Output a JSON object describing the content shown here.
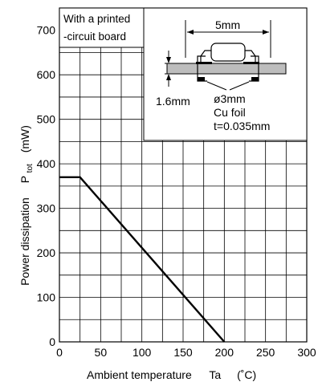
{
  "chart_data": {
    "type": "line",
    "title": "",
    "xlabel": "Ambient temperature",
    "xsymbol": "Ta",
    "xunit": "(˚C)",
    "ylabel": "Power dissipation",
    "ysymbol_main": "P",
    "ysymbol_sub": "tot",
    "yunit": "(mW)",
    "xlim": [
      0,
      300
    ],
    "ylim": [
      0,
      750
    ],
    "xticks": [
      0,
      50,
      100,
      150,
      200,
      250,
      300
    ],
    "yticks": [
      0,
      100,
      200,
      300,
      400,
      500,
      600,
      700
    ],
    "grid": true,
    "series": [
      {
        "x": [
          0,
          25,
          200
        ],
        "y": [
          370,
          370,
          0
        ]
      }
    ],
    "annotations": {
      "condition_line1": "With a printed",
      "condition_line2": "-circuit board",
      "pad_width": "5mm",
      "board_thickness": "1.6mm",
      "pad_diameter": "ø3mm",
      "foil_material": "Cu foil",
      "foil_thickness": "t=0.035mm"
    }
  }
}
